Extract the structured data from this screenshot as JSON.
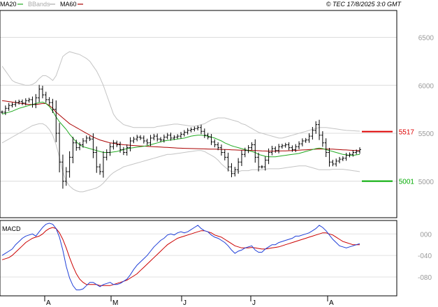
{
  "header": {
    "legend": [
      {
        "label": "MA20",
        "color": "#22aa22"
      },
      {
        "label": "BBands",
        "color": "#aaaaaa"
      },
      {
        "label": "MA60",
        "color": "#aa0000"
      }
    ],
    "copyright": "© TEC 17/8/2025 3:0 GMT"
  },
  "chart_data": [
    {
      "type": "ohlc",
      "title": "",
      "ylim": [
        4620,
        6780
      ],
      "yticks": [
        {
          "value": 6500,
          "label": "6500"
        },
        {
          "value": 6000,
          "label": "6000"
        },
        {
          "value": 5500,
          "label": "5500"
        },
        {
          "value": 5000,
          "label": "5000"
        }
      ],
      "months": [
        "A",
        "M",
        "J",
        "J",
        "A"
      ],
      "levels": [
        {
          "label": "5517",
          "value": 5517,
          "color": "#dd0000"
        },
        {
          "label": "5001",
          "value": 5001,
          "color": "#00aa00"
        }
      ],
      "price_closes": [
        5720,
        5760,
        5790,
        5800,
        5820,
        5830,
        5815,
        5840,
        5850,
        5800,
        5870,
        5960,
        5900,
        5850,
        5820,
        5750,
        5500,
        5200,
        5000,
        5100,
        5250,
        5400,
        5350,
        5380,
        5420,
        5450,
        5440,
        5300,
        5150,
        5100,
        5250,
        5300,
        5360,
        5400,
        5380,
        5330,
        5300,
        5350,
        5420,
        5440,
        5460,
        5450,
        5420,
        5400,
        5450,
        5470,
        5440,
        5430,
        5460,
        5480,
        5450,
        5460,
        5470,
        5490,
        5510,
        5530,
        5540,
        5550,
        5560,
        5520,
        5480,
        5460,
        5410,
        5380,
        5350,
        5300,
        5250,
        5150,
        5080,
        5120,
        5200,
        5280,
        5320,
        5350,
        5380,
        5250,
        5150,
        5150,
        5220,
        5300,
        5340,
        5320,
        5360,
        5370,
        5380,
        5350,
        5330,
        5360,
        5390,
        5420,
        5430,
        5470,
        5530,
        5590,
        5480,
        5400,
        5300,
        5200,
        5180,
        5210,
        5230,
        5240,
        5270,
        5280,
        5300,
        5310,
        5330
      ],
      "ma20_values": [
        5700,
        5710,
        5720,
        5730,
        5745,
        5760,
        5770,
        5780,
        5790,
        5800,
        5810,
        5820,
        5825,
        5810,
        5780,
        5730,
        5670,
        5620,
        5580,
        5540,
        5490,
        5450,
        5410,
        5380,
        5360,
        5350,
        5340,
        5330,
        5320,
        5310,
        5300,
        5300,
        5300,
        5305,
        5310,
        5320,
        5330,
        5340,
        5345,
        5350,
        5355,
        5360,
        5365,
        5370,
        5380,
        5390,
        5400,
        5410,
        5420,
        5425,
        5430,
        5435,
        5440,
        5445,
        5450,
        5460,
        5470,
        5475,
        5480,
        5480,
        5475,
        5470,
        5460,
        5450,
        5435,
        5420,
        5400,
        5385,
        5370,
        5360,
        5350,
        5340,
        5330,
        5320,
        5310,
        5300,
        5280,
        5270,
        5260,
        5255,
        5255,
        5255,
        5260,
        5265,
        5270,
        5275,
        5280,
        5285,
        5290,
        5300,
        5310,
        5320,
        5330,
        5340,
        5345,
        5340,
        5330,
        5320,
        5310,
        5300,
        5290,
        5280,
        5275,
        5270,
        5270,
        5275,
        5280
      ],
      "ma60_values": [
        5840,
        5835,
        5830,
        5825,
        5820,
        5815,
        5810,
        5805,
        5800,
        5800,
        5800,
        5805,
        5810,
        5810,
        5790,
        5760,
        5720,
        5690,
        5660,
        5630,
        5600,
        5580,
        5560,
        5540,
        5520,
        5500,
        5480,
        5460,
        5445,
        5430,
        5420,
        5410,
        5400,
        5395,
        5390,
        5385,
        5380,
        5378,
        5375,
        5372,
        5370,
        5368,
        5366,
        5364,
        5362,
        5360,
        5358,
        5356,
        5354,
        5352,
        5350,
        5348,
        5346,
        5344,
        5343,
        5342,
        5341,
        5340,
        5339,
        5338,
        5337,
        5336,
        5335,
        5334,
        5333,
        5332,
        5331,
        5330,
        5328,
        5326,
        5325,
        5324,
        5323,
        5322,
        5321,
        5320,
        5318,
        5316,
        5315,
        5314,
        5314,
        5314,
        5315,
        5316,
        5317,
        5318,
        5320,
        5322,
        5324,
        5326,
        5328,
        5330,
        5332,
        5334,
        5336,
        5336,
        5336,
        5335,
        5334,
        5332,
        5330,
        5328,
        5326,
        5324,
        5322,
        5320,
        5320
      ],
      "bb_upper_values": [
        6200,
        6150,
        6100,
        6050,
        6030,
        6020,
        6010,
        6000,
        6000,
        6010,
        6030,
        6070,
        6100,
        6100,
        6080,
        6050,
        6100,
        6200,
        6300,
        6330,
        6350,
        6340,
        6330,
        6320,
        6300,
        6280,
        6250,
        6200,
        6150,
        6080,
        6000,
        5900,
        5800,
        5700,
        5650,
        5620,
        5590,
        5580,
        5570,
        5560,
        5560,
        5560,
        5560,
        5560,
        5560,
        5560,
        5570,
        5575,
        5580,
        5585,
        5590,
        5595,
        5595,
        5590,
        5585,
        5580,
        5575,
        5575,
        5580,
        5590,
        5600,
        5620,
        5640,
        5650,
        5660,
        5660,
        5660,
        5650,
        5640,
        5630,
        5620,
        5600,
        5590,
        5570,
        5550,
        5530,
        5510,
        5500,
        5490,
        5480,
        5470,
        5460,
        5450,
        5450,
        5460,
        5470,
        5480,
        5490,
        5500,
        5510,
        5520,
        5530,
        5540,
        5550,
        5560,
        5560,
        5560,
        5555,
        5550,
        5545,
        5540,
        5535,
        5530,
        5528,
        5526,
        5524,
        5522
      ],
      "bb_lower_values": [
        5400,
        5420,
        5440,
        5460,
        5480,
        5500,
        5520,
        5540,
        5560,
        5580,
        5590,
        5600,
        5600,
        5580,
        5540,
        5480,
        5380,
        5250,
        5100,
        5000,
        4950,
        4920,
        4900,
        4890,
        4890,
        4900,
        4910,
        4920,
        4930,
        4950,
        4980,
        5020,
        5060,
        5090,
        5110,
        5130,
        5150,
        5160,
        5170,
        5180,
        5190,
        5200,
        5210,
        5220,
        5230,
        5240,
        5250,
        5260,
        5270,
        5280,
        5280,
        5285,
        5290,
        5295,
        5300,
        5305,
        5310,
        5315,
        5320,
        5320,
        5310,
        5290,
        5270,
        5250,
        5220,
        5180,
        5150,
        5120,
        5100,
        5100,
        5100,
        5110,
        5110,
        5110,
        5120,
        5120,
        5120,
        5120,
        5125,
        5130,
        5130,
        5130,
        5130,
        5135,
        5140,
        5145,
        5150,
        5155,
        5160,
        5160,
        5160,
        5150,
        5140,
        5130,
        5120,
        5120,
        5120,
        5120,
        5125,
        5125,
        5125,
        5125,
        5120,
        5115,
        5110,
        5105,
        5100
      ]
    },
    {
      "type": "line",
      "title": "MACD",
      "ylim": [
        -115,
        25
      ],
      "yticks": [
        {
          "value": 0,
          "label": "000"
        },
        {
          "value": -40,
          "label": "-040"
        },
        {
          "value": -80,
          "label": "-080"
        }
      ],
      "series": [
        {
          "name": "",
          "color": "#1f3fd8",
          "values": [
            -40,
            -36,
            -32,
            -28,
            -20,
            -14,
            -8,
            -4,
            -2,
            0,
            -4,
            4,
            12,
            18,
            20,
            18,
            10,
            -6,
            -30,
            -60,
            -82,
            -96,
            -104,
            -104,
            -102,
            -96,
            -90,
            -90,
            -94,
            -98,
            -94,
            -92,
            -90,
            -94,
            -94,
            -92,
            -88,
            -84,
            -76,
            -66,
            -58,
            -52,
            -46,
            -40,
            -32,
            -24,
            -18,
            -12,
            -8,
            -2,
            0,
            -2,
            2,
            4,
            2,
            4,
            8,
            12,
            16,
            10,
            6,
            4,
            -2,
            -6,
            -8,
            -12,
            -16,
            -22,
            -30,
            -36,
            -32,
            -30,
            -26,
            -24,
            -22,
            -30,
            -34,
            -34,
            -28,
            -24,
            -20,
            -20,
            -16,
            -14,
            -12,
            -10,
            -8,
            -4,
            -4,
            -2,
            0,
            2,
            6,
            10,
            16,
            12,
            6,
            -2,
            -10,
            -16,
            -22,
            -24,
            -26,
            -24,
            -22,
            -20,
            -18
          ]
        },
        {
          "name": "",
          "color": "#cc0000",
          "values": [
            -48,
            -46,
            -44,
            -40,
            -34,
            -28,
            -22,
            -16,
            -12,
            -8,
            -6,
            -4,
            0,
            6,
            10,
            12,
            10,
            2,
            -10,
            -26,
            -44,
            -60,
            -74,
            -84,
            -90,
            -94,
            -94,
            -94,
            -94,
            -96,
            -96,
            -96,
            -96,
            -94,
            -92,
            -90,
            -88,
            -86,
            -82,
            -78,
            -74,
            -68,
            -62,
            -56,
            -50,
            -44,
            -38,
            -32,
            -26,
            -20,
            -16,
            -12,
            -8,
            -6,
            -4,
            -2,
            0,
            2,
            4,
            6,
            6,
            4,
            2,
            -2,
            -4,
            -6,
            -10,
            -14,
            -18,
            -22,
            -24,
            -26,
            -26,
            -26,
            -25,
            -26,
            -27,
            -28,
            -28,
            -27,
            -26,
            -25,
            -24,
            -22,
            -20,
            -18,
            -16,
            -14,
            -12,
            -10,
            -8,
            -6,
            -4,
            -2,
            0,
            2,
            2,
            0,
            -2,
            -6,
            -10,
            -14,
            -16,
            -18,
            -20,
            -20,
            -20
          ]
        }
      ]
    }
  ]
}
